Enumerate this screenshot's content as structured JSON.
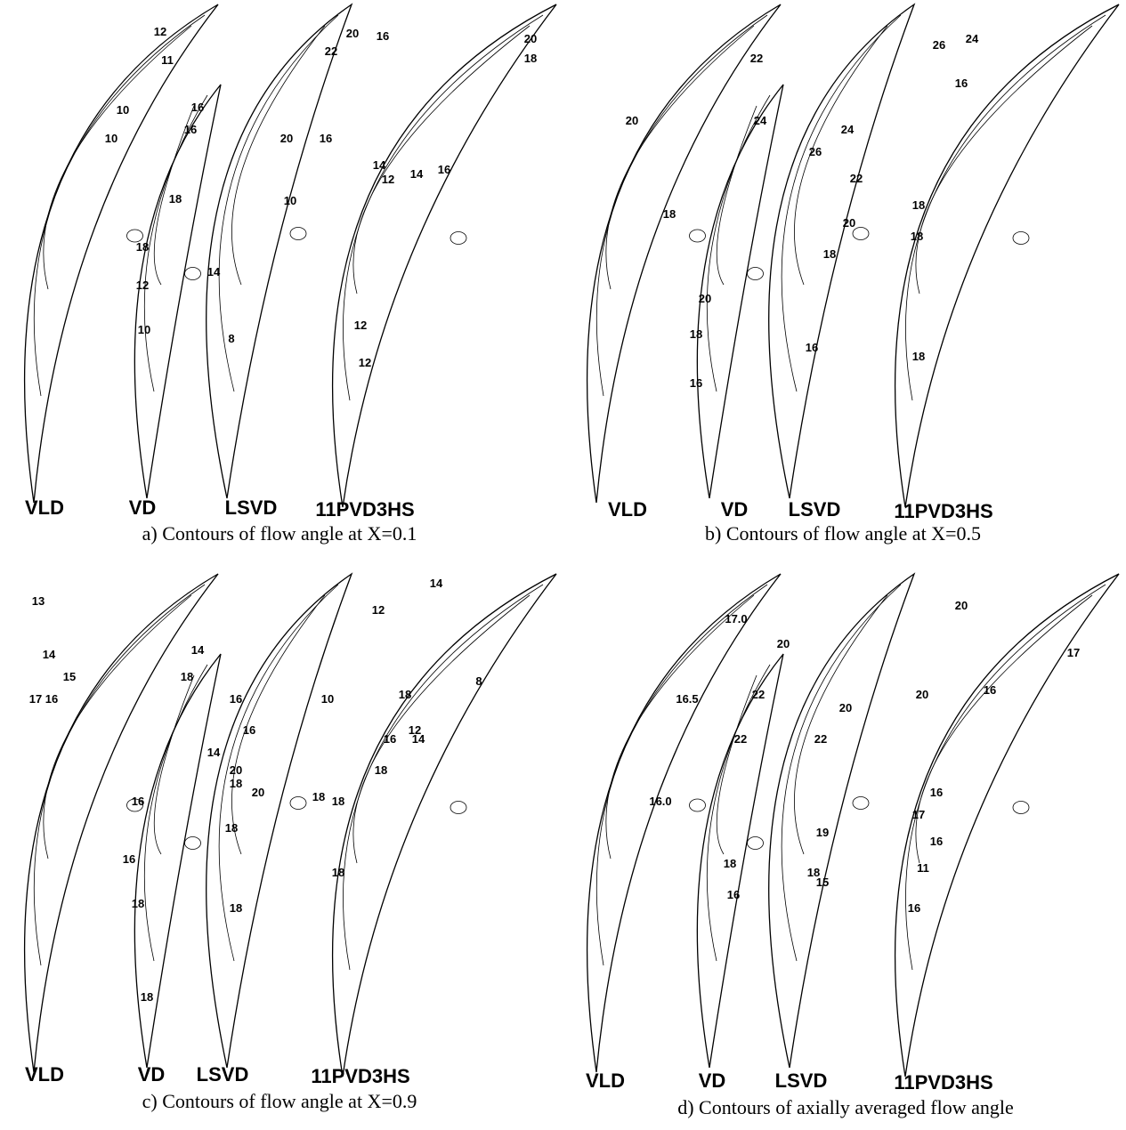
{
  "panels": [
    {
      "caption": "a) Contours of flow angle at X=0.1",
      "diffusers": [
        "VLD",
        "VD",
        "LSVD",
        "11PVD3HS"
      ],
      "contour_labels": [
        "12",
        "11",
        "10",
        "10",
        "16",
        "16",
        "20",
        "16",
        "22",
        "20",
        "16",
        "20",
        "18",
        "14",
        "12",
        "14",
        "16",
        "10",
        "18",
        "18",
        "12",
        "10",
        "14",
        "8",
        "12",
        "12"
      ]
    },
    {
      "caption": "b) Contours of flow angle at X=0.5",
      "diffusers": [
        "VLD",
        "VD",
        "LSVD",
        "11PVD3HS"
      ],
      "contour_labels": [
        "22",
        "20",
        "18",
        "24",
        "26",
        "24",
        "22",
        "20",
        "18",
        "16",
        "18",
        "18",
        "18",
        "20",
        "18",
        "16",
        "26",
        "24",
        "16"
      ]
    },
    {
      "caption": "c) Contours of flow angle at X=0.9",
      "diffusers": [
        "VLD",
        "VD",
        "LSVD",
        "11PVD3HS"
      ],
      "contour_labels": [
        "13",
        "14",
        "15",
        "17",
        "16",
        "18",
        "14",
        "16",
        "16",
        "14",
        "20",
        "18",
        "20",
        "18",
        "18",
        "16",
        "16",
        "18",
        "18",
        "12",
        "14",
        "10",
        "18",
        "12",
        "8",
        "16",
        "18",
        "14",
        "18",
        "18",
        "18"
      ]
    },
    {
      "caption": "d) Contours of axially averaged flow angle",
      "diffusers": [
        "VLD",
        "VD",
        "LSVD",
        "11PVD3HS"
      ],
      "contour_labels": [
        "17.0",
        "16.5",
        "16.0",
        "20",
        "22",
        "22",
        "18",
        "16",
        "22",
        "20",
        "19",
        "18",
        "15",
        "20",
        "17",
        "16",
        "16",
        "17",
        "16",
        "11",
        "16",
        "20"
      ]
    }
  ]
}
